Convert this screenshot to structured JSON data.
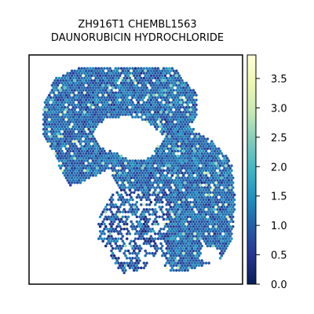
{
  "chart_data": {
    "type": "scatter",
    "subtype": "spatial-hex-spot-map",
    "title_lines": [
      "ZH916T1 CHEMBL1563",
      "DAUNORUBICIN HYDROCHLORIDE"
    ],
    "xlabel": "",
    "ylabel": "",
    "axes_ticks_visible": false,
    "grid": false,
    "colormap": "YlGnBu",
    "colormap_stops": [
      "#081d58",
      "#253494",
      "#225ea8",
      "#1d91c0",
      "#41b6c4",
      "#7fcdbb",
      "#c7e9b4",
      "#edf8b1",
      "#ffffd9"
    ],
    "colorbar": {
      "placement": "right",
      "range": [
        0.0,
        3.9
      ],
      "ticks": [
        0.0,
        0.5,
        1.0,
        1.5,
        2.0,
        2.5,
        3.0,
        3.5
      ],
      "tick_labels": [
        "0.0",
        "0.5",
        "1.0",
        "1.5",
        "2.0",
        "2.5",
        "3.0",
        "3.5"
      ]
    },
    "value_distribution_note": "most spots between 0.8 and 1.8, scattered spots up to ~3.8"
  }
}
